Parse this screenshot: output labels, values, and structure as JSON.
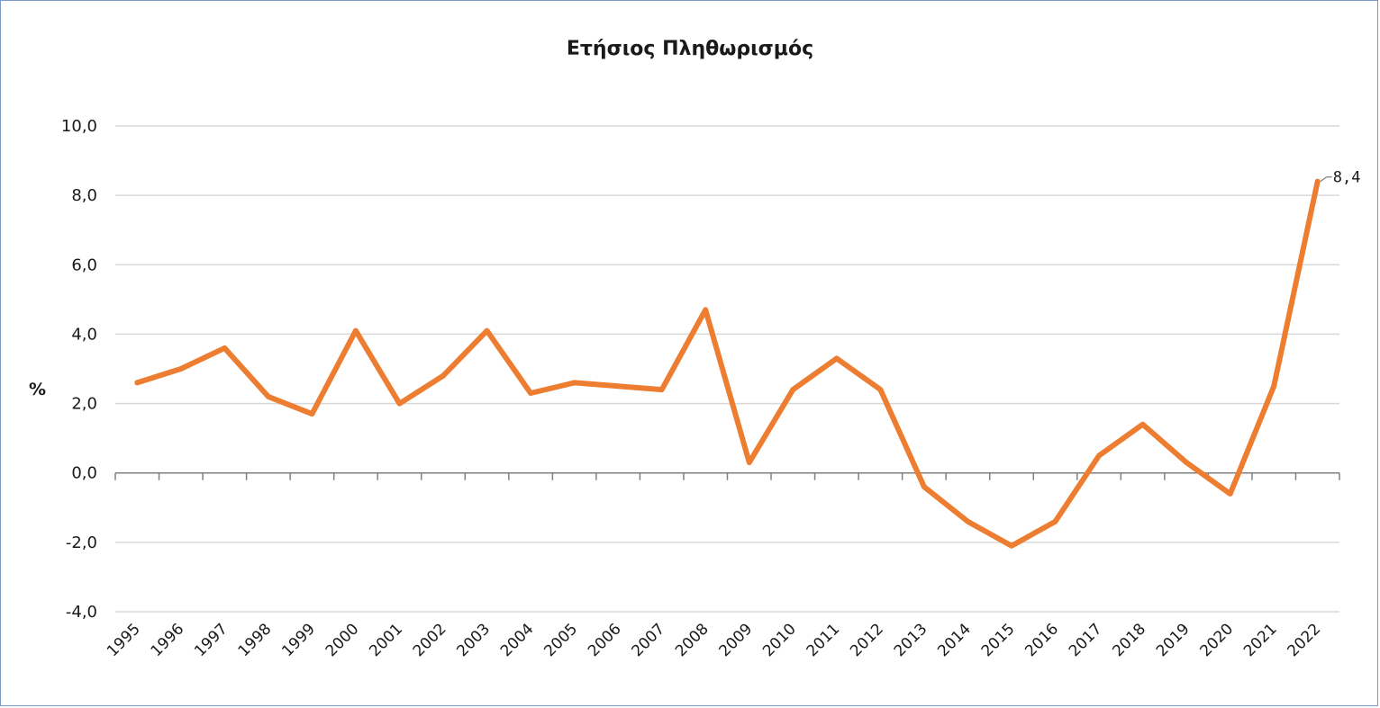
{
  "chart_data": {
    "type": "line",
    "title": "Ετήσιος Πληθωρισμός",
    "xlabel": "",
    "ylabel": "%",
    "ylim": [
      -4,
      10
    ],
    "yticks": [
      10,
      8,
      6,
      4,
      2,
      0,
      -2,
      -4
    ],
    "ytick_labels": [
      "10,0",
      "8,0",
      "6,0",
      "4,0",
      "2,0",
      "0,0",
      "-2,0",
      "-4,0"
    ],
    "grid": true,
    "legend": "none",
    "categories": [
      "1995",
      "1996",
      "1997",
      "1998",
      "1999",
      "2000",
      "2001",
      "2002",
      "2003",
      "2004",
      "2005",
      "2006",
      "2007",
      "2008",
      "2009",
      "2010",
      "2011",
      "2012",
      "2013",
      "2014",
      "2015",
      "2016",
      "2017",
      "2018",
      "2019",
      "2020",
      "2021",
      "2022"
    ],
    "series": [
      {
        "color": "#ed7d31",
        "values": [
          2.6,
          3.0,
          3.6,
          2.2,
          1.7,
          4.1,
          2.0,
          2.8,
          4.1,
          2.3,
          2.6,
          2.5,
          2.4,
          4.7,
          0.3,
          2.4,
          3.3,
          2.4,
          -0.4,
          -1.4,
          -2.1,
          -1.4,
          0.5,
          1.4,
          0.3,
          -0.6,
          2.5,
          8.4
        ]
      }
    ],
    "annotations": [
      {
        "category": "2022",
        "text": "8,4"
      }
    ]
  },
  "colors": {
    "line": "#ed7d31",
    "grid": "#d9d9d9",
    "axis": "#808080",
    "border": "#7a99c8"
  }
}
